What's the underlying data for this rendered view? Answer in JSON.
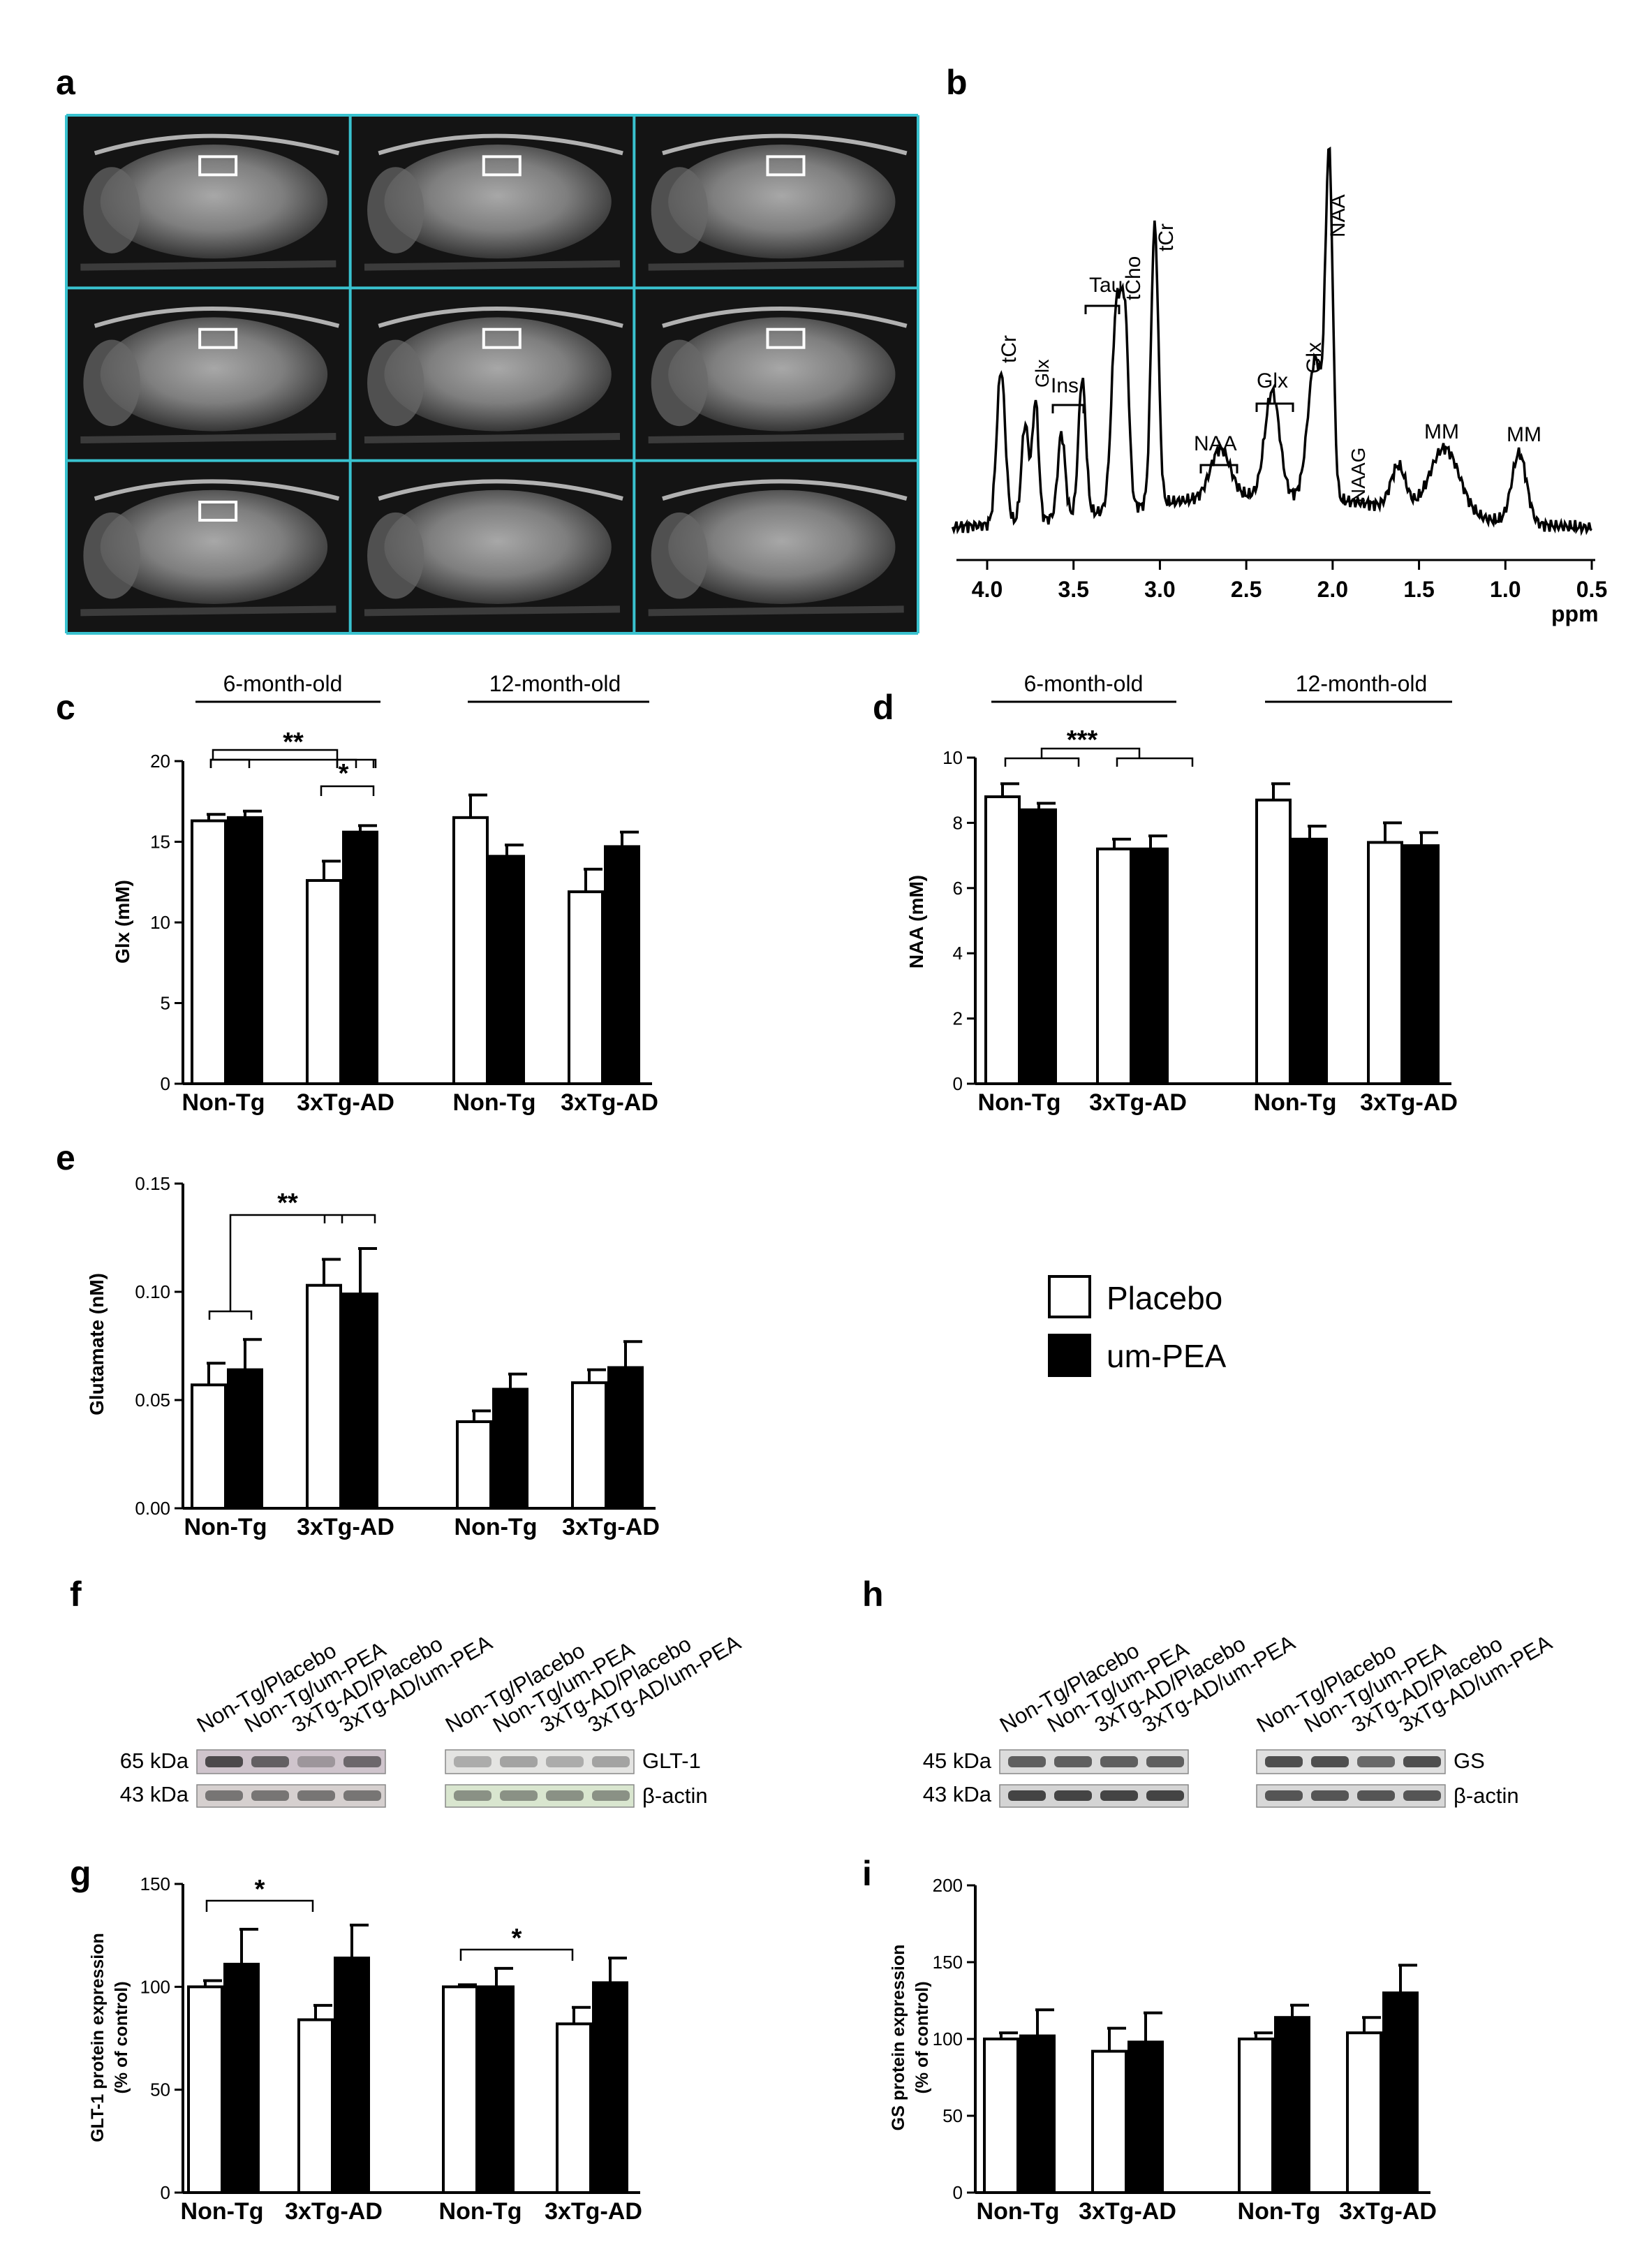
{
  "panels": {
    "a": "a",
    "b": "b",
    "c": "c",
    "d": "d",
    "e": "e",
    "f": "f",
    "g": "g",
    "h": "h",
    "i": "i"
  },
  "legend": {
    "placebo": "Placebo",
    "um_pea": "um-PEA",
    "placebo_color": "#ffffff",
    "um_pea_color": "#000000"
  },
  "groups": {
    "non_tg": "Non-Tg",
    "tg_ad": "3xTg-AD"
  },
  "ages": {
    "six": "6-month-old",
    "twelve": "12-month-old"
  },
  "mri_panel": {
    "grid_color": "#39c2cf",
    "rows": 3,
    "cols": 3
  },
  "spectrum": {
    "x_axis_label": "ppm",
    "x_ticks": [
      "4.0",
      "3.5",
      "3.0",
      "2.5",
      "2.0",
      "1.5",
      "1.0",
      "0.5"
    ],
    "peak_labels": [
      "tCr",
      "Glx",
      "Ins",
      "Tau",
      "tCho",
      "tCr",
      "NAA",
      "Glx",
      "Glx",
      "NAA",
      "NAAG",
      "MM",
      "MM"
    ]
  },
  "chart_data": [
    {
      "id": "c",
      "type": "bar",
      "ylabel": "Glx (mM)",
      "ylim": [
        0,
        20
      ],
      "yticks": [
        "0",
        "5",
        "10",
        "15",
        "20"
      ],
      "categories": [
        "Non-Tg (6-month-old)",
        "3xTg-AD (6-month-old)",
        "Non-Tg (12-month-old)",
        "3xTg-AD (12-month-old)"
      ],
      "series": [
        {
          "name": "Placebo",
          "values": [
            16.3,
            12.6,
            16.5,
            11.9
          ],
          "errors": [
            0.4,
            1.2,
            1.4,
            1.4
          ]
        },
        {
          "name": "um-PEA",
          "values": [
            16.5,
            15.6,
            14.1,
            14.7
          ],
          "errors": [
            0.4,
            0.4,
            0.7,
            0.9
          ]
        }
      ],
      "significance": [
        "**",
        "*"
      ]
    },
    {
      "id": "d",
      "type": "bar",
      "ylabel": "NAA (mM)",
      "ylim": [
        0,
        10
      ],
      "yticks": [
        "0",
        "2",
        "4",
        "6",
        "8",
        "10"
      ],
      "categories": [
        "Non-Tg (6-month-old)",
        "3xTg-AD (6-month-old)",
        "Non-Tg (12-month-old)",
        "3xTg-AD (12-month-old)"
      ],
      "series": [
        {
          "name": "Placebo",
          "values": [
            8.8,
            7.2,
            8.7,
            7.4
          ],
          "errors": [
            0.4,
            0.3,
            0.5,
            0.6
          ]
        },
        {
          "name": "um-PEA",
          "values": [
            8.4,
            7.2,
            7.5,
            7.3
          ],
          "errors": [
            0.2,
            0.4,
            0.4,
            0.4
          ]
        }
      ],
      "significance": [
        "***"
      ]
    },
    {
      "id": "e",
      "type": "bar",
      "ylabel": "Glutamate (nM)",
      "ylim": [
        0,
        0.15
      ],
      "yticks": [
        "0.00",
        "0.05",
        "0.10",
        "0.15"
      ],
      "categories": [
        "Non-Tg (6-month-old)",
        "3xTg-AD (6-month-old)",
        "Non-Tg (12-month-old)",
        "3xTg-AD (12-month-old)"
      ],
      "series": [
        {
          "name": "Placebo",
          "values": [
            0.057,
            0.103,
            0.04,
            0.058
          ],
          "errors": [
            0.01,
            0.012,
            0.005,
            0.006
          ]
        },
        {
          "name": "um-PEA",
          "values": [
            0.064,
            0.099,
            0.055,
            0.065
          ],
          "errors": [
            0.014,
            0.021,
            0.007,
            0.012
          ]
        }
      ],
      "significance": [
        "**"
      ]
    },
    {
      "id": "g",
      "type": "bar",
      "ylabel": "GLT-1 protein expression (% of control)",
      "ylim": [
        0,
        150
      ],
      "yticks": [
        "0",
        "50",
        "100",
        "150"
      ],
      "categories": [
        "Non-Tg (6-month-old)",
        "3xTg-AD (6-month-old)",
        "Non-Tg (12-month-old)",
        "3xTg-AD (12-month-old)"
      ],
      "series": [
        {
          "name": "Placebo",
          "values": [
            100,
            84,
            100,
            82
          ],
          "errors": [
            3,
            7,
            1,
            8
          ]
        },
        {
          "name": "um-PEA",
          "values": [
            111,
            114,
            100,
            102
          ],
          "errors": [
            17,
            16,
            9,
            12
          ]
        }
      ],
      "significance": [
        "*",
        "*"
      ]
    },
    {
      "id": "i",
      "type": "bar",
      "ylabel": "GS protein expression (% of control)",
      "ylim": [
        0,
        200
      ],
      "yticks": [
        "0",
        "50",
        "100",
        "150",
        "200"
      ],
      "categories": [
        "Non-Tg (6-month-old)",
        "3xTg-AD (6-month-old)",
        "Non-Tg (12-month-old)",
        "3xTg-AD (12-month-old)"
      ],
      "series": [
        {
          "name": "Placebo",
          "values": [
            100,
            92,
            100,
            104
          ],
          "errors": [
            4,
            15,
            4,
            10
          ]
        },
        {
          "name": "um-PEA",
          "values": [
            102,
            98,
            114,
            130
          ],
          "errors": [
            17,
            19,
            8,
            18
          ]
        }
      ],
      "significance": []
    }
  ],
  "blots": {
    "lanes": [
      "Non-Tg/Placebo",
      "Non-Tg/um-PEA",
      "3xTg-AD/Placebo",
      "3xTg-AD/um-PEA"
    ],
    "f": {
      "kda_top": "65 kDa",
      "kda_bottom": "43 kDa",
      "protein": "GLT-1",
      "loading": "β-actin"
    },
    "h": {
      "kda_top": "45 kDa",
      "kda_bottom": "43 kDa",
      "protein": "GS",
      "loading": "β-actin"
    }
  }
}
